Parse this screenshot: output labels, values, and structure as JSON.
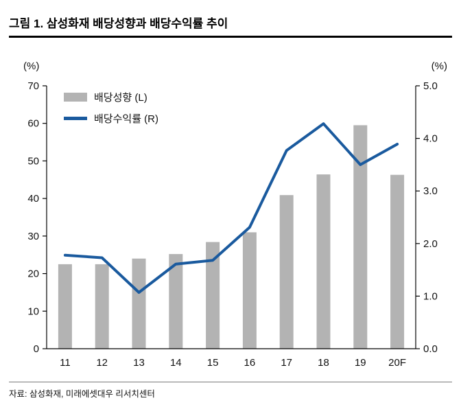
{
  "header": {
    "title": "그림 1. 삼성화재 배당성향과 배당수익률 추이"
  },
  "footer": {
    "source": "자료: 삼성화재, 미래에셋대우 리서치센터"
  },
  "chart_data": {
    "type": "bar+line",
    "categories": [
      "11",
      "12",
      "13",
      "14",
      "15",
      "16",
      "17",
      "18",
      "19",
      "20F"
    ],
    "series": [
      {
        "name": "배당성향 (L)",
        "type": "bar",
        "axis": "left",
        "color": "#b3b3b3",
        "values": [
          22.5,
          22.5,
          24.0,
          25.2,
          28.4,
          31.0,
          40.9,
          46.4,
          59.5,
          46.3
        ]
      },
      {
        "name": "배당수익률 (R)",
        "type": "line",
        "axis": "right",
        "color": "#1a5a9e",
        "values": [
          1.78,
          1.73,
          1.07,
          1.61,
          1.68,
          2.31,
          3.77,
          4.28,
          3.5,
          3.89
        ]
      }
    ],
    "left_axis": {
      "label": "(%)",
      "min": 0,
      "max": 70,
      "ticks": [
        "0",
        "10",
        "20",
        "30",
        "40",
        "50",
        "60",
        "70"
      ]
    },
    "right_axis": {
      "label": "(%)",
      "min": 0,
      "max": 5,
      "ticks": [
        "0.0",
        "1.0",
        "2.0",
        "3.0",
        "4.0",
        "5.0"
      ]
    },
    "grid": false,
    "legend_position": "top-left-inside"
  }
}
